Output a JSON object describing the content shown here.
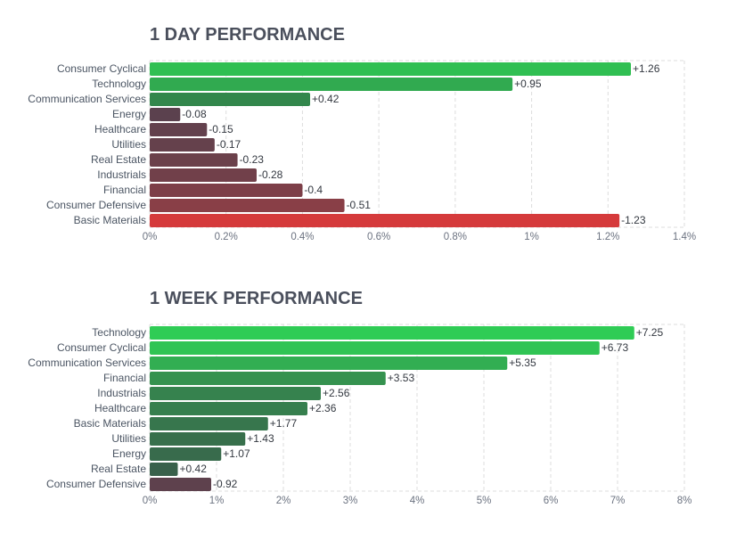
{
  "chart_data": [
    {
      "type": "bar",
      "orientation": "horizontal",
      "title": "1 DAY PERFORMANCE",
      "categories": [
        "Consumer Cyclical",
        "Technology",
        "Communication Services",
        "Energy",
        "Healthcare",
        "Utilities",
        "Real Estate",
        "Industrials",
        "Financial",
        "Consumer Defensive",
        "Basic Materials"
      ],
      "values": [
        1.26,
        0.95,
        0.42,
        -0.08,
        -0.15,
        -0.17,
        -0.23,
        -0.28,
        -0.4,
        -0.51,
        -1.23
      ],
      "value_labels": [
        "+1.26",
        "+0.95",
        "+0.42",
        "-0.08",
        "-0.15",
        "-0.17",
        "-0.23",
        "-0.28",
        "-0.4",
        "-0.51",
        "-1.23"
      ],
      "xticks": [
        "0%",
        "0.2%",
        "0.4%",
        "0.6%",
        "0.8%",
        "1%",
        "1.2%",
        "1.4%"
      ],
      "xlim": [
        0,
        1.4
      ],
      "grid": true,
      "colors": {
        "positive_strong": "#30bf52",
        "positive_weak": "#356b49",
        "negative_weak": "#53424f",
        "negative_strong": "#d83a3a"
      }
    },
    {
      "type": "bar",
      "orientation": "horizontal",
      "title": "1 WEEK PERFORMANCE",
      "categories": [
        "Technology",
        "Consumer Cyclical",
        "Communication Services",
        "Financial",
        "Industrials",
        "Healthcare",
        "Basic Materials",
        "Utilities",
        "Energy",
        "Real Estate",
        "Consumer Defensive"
      ],
      "values": [
        7.25,
        6.73,
        5.35,
        3.53,
        2.56,
        2.36,
        1.77,
        1.43,
        1.07,
        0.42,
        -0.92
      ],
      "value_labels": [
        "+7.25",
        "+6.73",
        "+5.35",
        "+3.53",
        "+2.56",
        "+2.36",
        "+1.77",
        "+1.43",
        "+1.07",
        "+0.42",
        "-0.92"
      ],
      "xticks": [
        "0%",
        "1%",
        "2%",
        "3%",
        "4%",
        "5%",
        "6%",
        "7%",
        "8%"
      ],
      "xlim": [
        0,
        8
      ],
      "grid": true,
      "colors": {
        "positive_strong": "#2fcc55",
        "positive_weak": "#3a5a4a",
        "negative_weak": "#55424e",
        "negative_strong": "#9c3b47"
      }
    }
  ]
}
